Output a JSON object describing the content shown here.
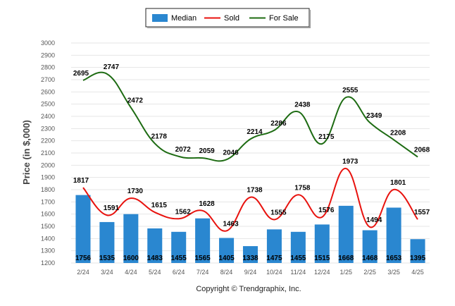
{
  "chart_data": {
    "type": "bar",
    "title": "",
    "xlabel": "",
    "ylabel": "Price (in $,000)",
    "ylim": [
      1200,
      3000
    ],
    "yticks": [
      1200,
      1300,
      1400,
      1500,
      1600,
      1700,
      1800,
      1900,
      2000,
      2100,
      2200,
      2300,
      2400,
      2500,
      2600,
      2700,
      2800,
      2900,
      3000
    ],
    "categories": [
      "2/24",
      "3/24",
      "4/24",
      "5/24",
      "6/24",
      "7/24",
      "8/24",
      "9/24",
      "10/24",
      "11/24",
      "12/24",
      "1/25",
      "2/25",
      "3/25",
      "4/25"
    ],
    "grid": true,
    "legend_position": "top-center",
    "series": [
      {
        "name": "Median",
        "type": "bar",
        "color": "#2a87d0",
        "values": [
          1756,
          1535,
          1600,
          1483,
          1455,
          1565,
          1405,
          1338,
          1475,
          1455,
          1515,
          1668,
          1468,
          1653,
          1395
        ]
      },
      {
        "name": "Sold",
        "type": "line",
        "color": "#e8120e",
        "values": [
          1817,
          1591,
          1730,
          1615,
          1562,
          1628,
          1463,
          1738,
          1555,
          1758,
          1576,
          1973,
          1494,
          1801,
          1557
        ]
      },
      {
        "name": "For Sale",
        "type": "line",
        "color": "#1d6b12",
        "values": [
          2695,
          2747,
          2472,
          2178,
          2072,
          2059,
          2046,
          2214,
          2286,
          2438,
          2175,
          2555,
          2349,
          2208,
          2068
        ]
      }
    ]
  },
  "footer": {
    "copyright": "Copyright © Trendgraphix, Inc."
  }
}
